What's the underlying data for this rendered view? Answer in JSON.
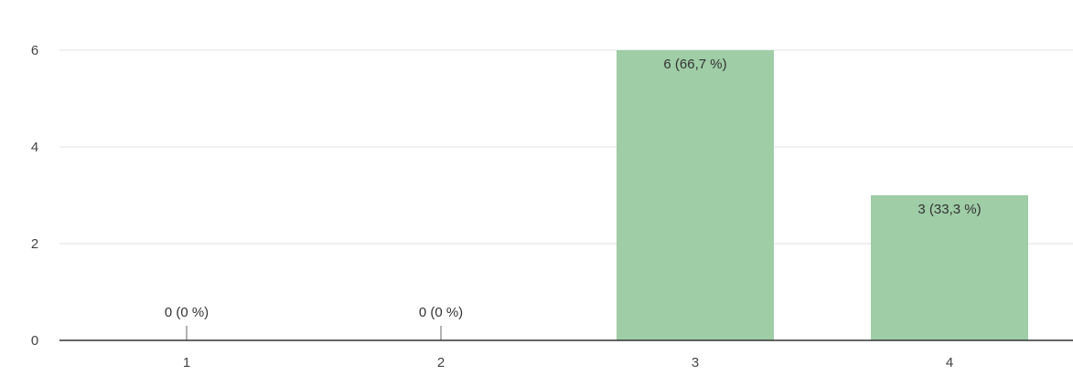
{
  "chart_data": {
    "type": "bar",
    "categories": [
      "1",
      "2",
      "3",
      "4"
    ],
    "values": [
      0,
      0,
      6,
      3
    ],
    "data_labels": [
      "0 (0 %)",
      "0 (0 %)",
      "6 (66,7 %)",
      "3 (33,3 %)"
    ],
    "y_ticks": [
      "0",
      "2",
      "4",
      "6"
    ],
    "ylim": [
      0,
      6
    ],
    "grid": true,
    "legend": "none",
    "bar_color": "#9fcda6",
    "gridline_color": "#ececec",
    "axis_color": "#333333"
  }
}
